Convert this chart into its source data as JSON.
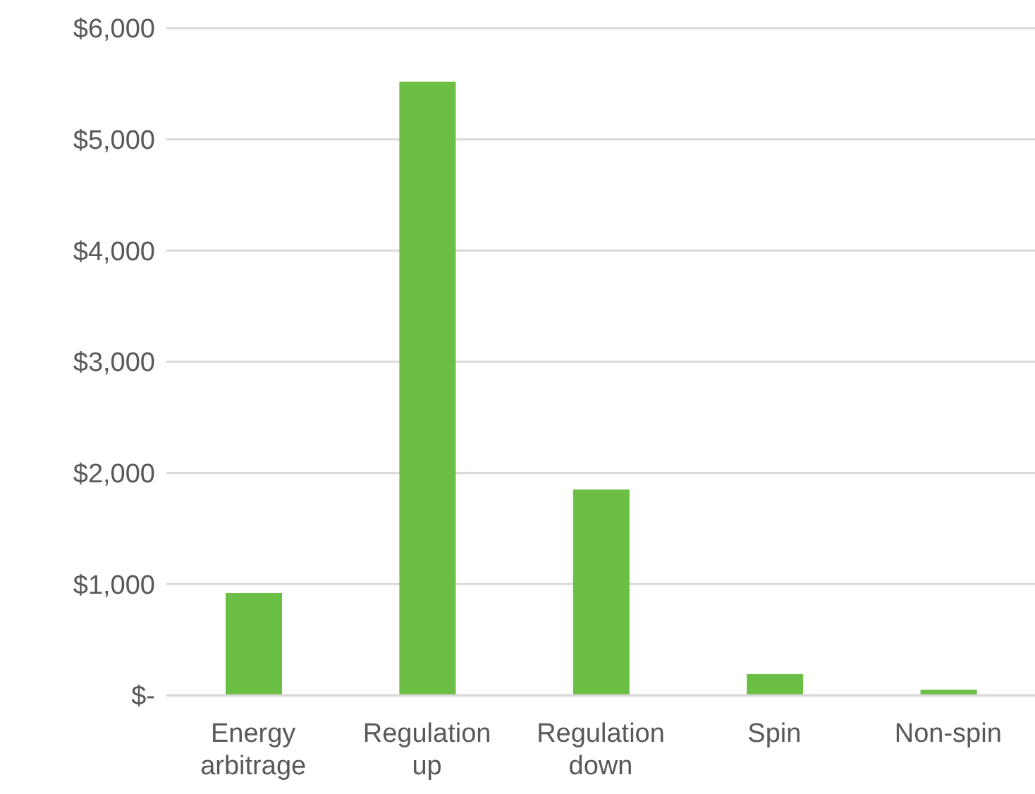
{
  "chart_data": {
    "type": "bar",
    "categories": [
      "Energy arbitrage",
      "Regulation up",
      "Regulation down",
      "Spin",
      "Non-spin"
    ],
    "values": [
      920,
      5520,
      1850,
      190,
      50
    ],
    "color": "#6cbf45",
    "ylim": [
      0,
      6000
    ],
    "yticks": [
      {
        "value": 0,
        "label": "$-"
      },
      {
        "value": 1000,
        "label": "$1,000"
      },
      {
        "value": 2000,
        "label": "$2,000"
      },
      {
        "value": 3000,
        "label": "$3,000"
      },
      {
        "value": 4000,
        "label": "$4,000"
      },
      {
        "value": 5000,
        "label": "$5,000"
      },
      {
        "value": 6000,
        "label": "$6,000"
      }
    ],
    "grid": "y"
  }
}
